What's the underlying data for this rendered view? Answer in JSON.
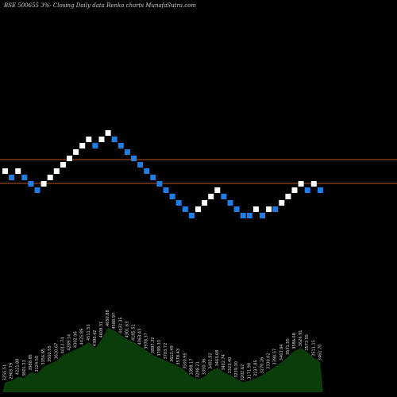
{
  "title": "BSE 500655 3%- Closing Daily data Renko charts MunafaSutra.com",
  "chart_data": {
    "type": "renko",
    "title": "BSE 500655 3%- Closing Daily data Renko charts MunafaSutra.com",
    "reference_lines": [
      {
        "name": "upper",
        "level": 1.0,
        "color": "#b8541c"
      },
      {
        "name": "lower",
        "level": -2.0,
        "color": "#b8541c"
      }
    ],
    "colors": {
      "up": "#ffffff",
      "down": "#1e7ee6",
      "volume": "#0a3d0a",
      "volume_label": "#d8d8d8"
    },
    "bricks": [
      {
        "dir": "up",
        "level": 0
      },
      {
        "dir": "down",
        "level": -1
      },
      {
        "dir": "up",
        "level": 0
      },
      {
        "dir": "down",
        "level": -1
      },
      {
        "dir": "down",
        "level": -2
      },
      {
        "dir": "down",
        "level": -3
      },
      {
        "dir": "up",
        "level": -2
      },
      {
        "dir": "up",
        "level": -1
      },
      {
        "dir": "up",
        "level": 0
      },
      {
        "dir": "up",
        "level": 1
      },
      {
        "dir": "up",
        "level": 2
      },
      {
        "dir": "up",
        "level": 3
      },
      {
        "dir": "up",
        "level": 4
      },
      {
        "dir": "up",
        "level": 5
      },
      {
        "dir": "down",
        "level": 4
      },
      {
        "dir": "up",
        "level": 5
      },
      {
        "dir": "up",
        "level": 6
      },
      {
        "dir": "down",
        "level": 5
      },
      {
        "dir": "down",
        "level": 4
      },
      {
        "dir": "down",
        "level": 3
      },
      {
        "dir": "down",
        "level": 2
      },
      {
        "dir": "down",
        "level": 1
      },
      {
        "dir": "down",
        "level": 0
      },
      {
        "dir": "down",
        "level": -1
      },
      {
        "dir": "down",
        "level": -2
      },
      {
        "dir": "down",
        "level": -3
      },
      {
        "dir": "down",
        "level": -4
      },
      {
        "dir": "down",
        "level": -5
      },
      {
        "dir": "down",
        "level": -6
      },
      {
        "dir": "down",
        "level": -7
      },
      {
        "dir": "up",
        "level": -6
      },
      {
        "dir": "up",
        "level": -5
      },
      {
        "dir": "up",
        "level": -4
      },
      {
        "dir": "up",
        "level": -3
      },
      {
        "dir": "down",
        "level": -4
      },
      {
        "dir": "down",
        "level": -5
      },
      {
        "dir": "down",
        "level": -6
      },
      {
        "dir": "down",
        "level": -7
      },
      {
        "dir": "down",
        "level": -7
      },
      {
        "dir": "up",
        "level": -6
      },
      {
        "dir": "down",
        "level": -7
      },
      {
        "dir": "up",
        "level": -6
      },
      {
        "dir": "down",
        "level": -6
      },
      {
        "dir": "up",
        "level": -5
      },
      {
        "dir": "up",
        "level": -4
      },
      {
        "dir": "up",
        "level": -3
      },
      {
        "dir": "up",
        "level": -2
      },
      {
        "dir": "down",
        "level": -3
      },
      {
        "dir": "up",
        "level": -2
      },
      {
        "dir": "down",
        "level": -3
      }
    ],
    "volume": [
      0.14,
      0.16,
      0.22,
      0.2,
      0.28,
      0.26,
      0.36,
      0.4,
      0.44,
      0.52,
      0.56,
      0.6,
      0.64,
      0.7,
      0.62,
      0.74,
      0.9,
      0.86,
      0.8,
      0.74,
      0.7,
      0.64,
      0.58,
      0.52,
      0.48,
      0.44,
      0.4,
      0.36,
      0.3,
      0.22,
      0.18,
      0.22,
      0.3,
      0.34,
      0.28,
      0.24,
      0.18,
      0.14,
      0.16,
      0.2,
      0.24,
      0.3,
      0.36,
      0.42,
      0.5,
      0.58,
      0.62,
      0.56,
      0.48,
      0.42
    ],
    "volume_labels": [
      "3255.51",
      "2903.79",
      "4221.88",
      "3801.33",
      "3988.85",
      "3124.50",
      "3356.65",
      "3502.55",
      "3620.67",
      "4012.74",
      "4289.14",
      "4302.06",
      "4425.89",
      "4511.53",
      "4390.42",
      "4608.31",
      "4650.88",
      "4588.97",
      "4431.35",
      "4301.63",
      "4185.51",
      "4063.43",
      "3978.37",
      "3897.32",
      "3799.33",
      "3703.72",
      "3612.49",
      "3578.43",
      "3500.95",
      "3398.17",
      "3298.21",
      "3350.36",
      "3402.92",
      "3463.08",
      "3402.74",
      "3323.40",
      "3239.30",
      "3202.62",
      "3171.90",
      "3237.85",
      "3270.26",
      "3330.02",
      "3398.57",
      "3463.94",
      "3531.55",
      "3586.08",
      "3626.91",
      "3573.55",
      "3511.15",
      "3461.70"
    ]
  }
}
